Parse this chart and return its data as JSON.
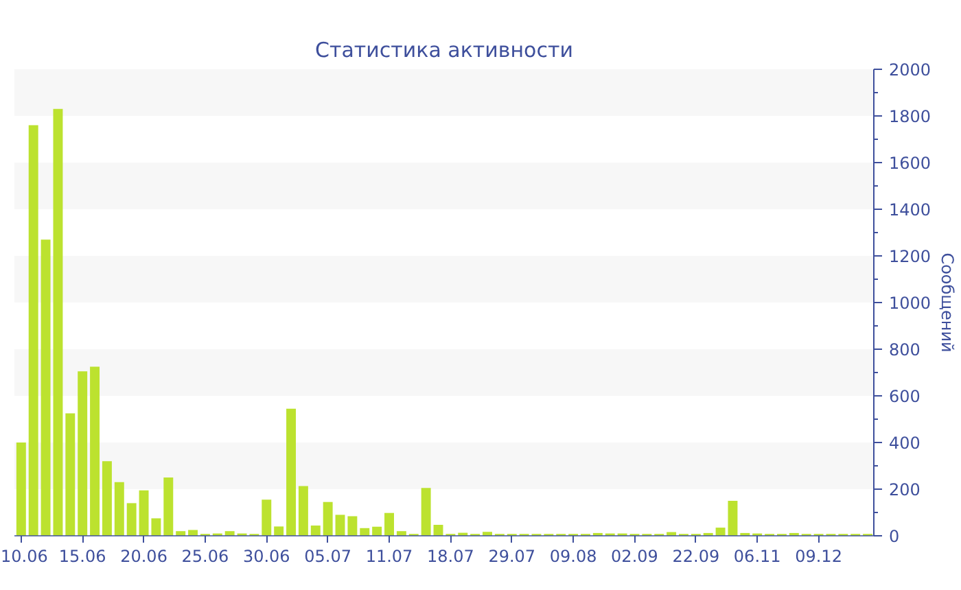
{
  "chart_data": {
    "type": "bar",
    "title": "Статистика активности",
    "ylabel": "Сообщений",
    "categories": [
      "10.06",
      null,
      null,
      null,
      null,
      "15.06",
      null,
      null,
      null,
      null,
      "20.06",
      null,
      null,
      null,
      null,
      "25.06",
      null,
      null,
      null,
      null,
      "30.06",
      null,
      null,
      null,
      null,
      "05.07",
      null,
      null,
      null,
      null,
      "11.07",
      null,
      null,
      null,
      null,
      "18.07",
      null,
      null,
      null,
      null,
      "29.07",
      null,
      null,
      null,
      null,
      "09.08",
      null,
      null,
      null,
      null,
      "02.09",
      null,
      null,
      null,
      null,
      "22.09",
      null,
      null,
      null,
      null,
      "06.11",
      null,
      null,
      null,
      null,
      "09.12",
      null,
      null,
      null,
      null
    ],
    "values": [
      400,
      1760,
      1270,
      1830,
      525,
      705,
      725,
      320,
      230,
      140,
      195,
      75,
      250,
      20,
      25,
      8,
      10,
      20,
      10,
      8,
      155,
      40,
      545,
      213,
      44,
      145,
      90,
      84,
      33,
      39,
      98,
      20,
      8,
      205,
      47,
      8,
      13,
      8,
      17,
      8,
      8,
      8,
      8,
      8,
      8,
      8,
      8,
      12,
      10,
      10,
      8,
      8,
      8,
      16,
      8,
      8,
      12,
      35,
      150,
      12,
      10,
      8,
      8,
      12,
      8,
      8,
      8,
      8,
      8,
      8
    ],
    "color": "#bce22f",
    "ylim": [
      0,
      2000
    ],
    "yticks": [
      0,
      200,
      400,
      600,
      800,
      1000,
      1200,
      1400,
      1600,
      1800,
      2000
    ],
    "grid": false,
    "bands": [
      {
        "axis": "y",
        "from": 200,
        "to": 400,
        "color": "#f7f7f7"
      },
      {
        "axis": "y",
        "from": 600,
        "to": 800,
        "color": "#f7f7f7"
      },
      {
        "axis": "y",
        "from": 1000,
        "to": 1200,
        "color": "#f7f7f7"
      },
      {
        "axis": "y",
        "from": 1400,
        "to": 1600,
        "color": "#f7f7f7"
      },
      {
        "axis": "y",
        "from": 1800,
        "to": 2000,
        "color": "#f7f7f7"
      }
    ]
  }
}
